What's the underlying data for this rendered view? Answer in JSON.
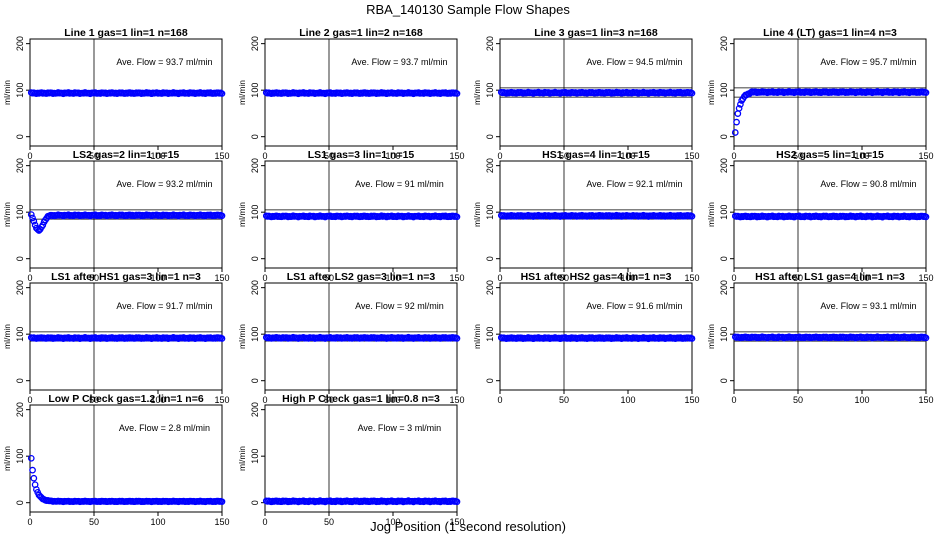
{
  "figure": {
    "title": "RBA_140130  Sample Flow Shapes",
    "xlabel": "Jog Position (1 second resolution)"
  },
  "chart_data": [
    {
      "type": "scatter",
      "title": "Line 1 gas=1 lin=1 n=168",
      "ylabel": "ml/min",
      "annotation": "Ave. Flow = 93.7  ml/min",
      "ave_flow": 93.7,
      "xlim": [
        0,
        150
      ],
      "ylim": [
        -20,
        210
      ],
      "xticks": [
        0,
        50,
        100,
        150
      ],
      "yticks": [
        0,
        100,
        200
      ],
      "hlines": [],
      "vline": 50,
      "shape": "flat",
      "level": 93.7
    },
    {
      "type": "scatter",
      "title": "Line 2 gas=1 lin=2 n=168",
      "ylabel": "ml/min",
      "annotation": "Ave. Flow = 93.7  ml/min",
      "ave_flow": 93.7,
      "xlim": [
        0,
        150
      ],
      "ylim": [
        -20,
        210
      ],
      "xticks": [
        0,
        50,
        100,
        150
      ],
      "yticks": [
        0,
        100,
        200
      ],
      "hlines": [],
      "vline": 50,
      "shape": "flat",
      "level": 93.7
    },
    {
      "type": "scatter",
      "title": "Line 3 gas=1 lin=3 n=168",
      "ylabel": "ml/min",
      "annotation": "Ave. Flow = 94.5  ml/min",
      "ave_flow": 94.5,
      "xlim": [
        0,
        150
      ],
      "ylim": [
        -20,
        210
      ],
      "xticks": [
        0,
        50,
        100,
        150
      ],
      "yticks": [
        0,
        100,
        200
      ],
      "hlines": [
        85,
        105
      ],
      "vline": 50,
      "shape": "flat",
      "level": 94.5
    },
    {
      "type": "scatter",
      "title": "Line 4 (LT) gas=1 lin=4 n=3",
      "ylabel": "ml/min",
      "annotation": "Ave. Flow = 95.7  ml/min",
      "ave_flow": 95.7,
      "xlim": [
        0,
        150
      ],
      "ylim": [
        -20,
        210
      ],
      "xticks": [
        0,
        50,
        100,
        150
      ],
      "yticks": [
        0,
        100,
        200
      ],
      "hlines": [
        85,
        105
      ],
      "vline": 50,
      "shape": "rise",
      "level": 95.7
    },
    {
      "type": "scatter",
      "title": "LS2 gas=2 lin=1 n=15",
      "ylabel": "ml/min",
      "annotation": "Ave. Flow = 93.2  ml/min",
      "ave_flow": 93.2,
      "xlim": [
        0,
        150
      ],
      "ylim": [
        -20,
        210
      ],
      "xticks": [
        0,
        50,
        100,
        150
      ],
      "yticks": [
        0,
        100,
        200
      ],
      "hlines": [
        85,
        105
      ],
      "vline": 50,
      "shape": "dip",
      "level": 93.2
    },
    {
      "type": "scatter",
      "title": "LS1 gas=3 lin=1 n=15",
      "ylabel": "ml/min",
      "annotation": "Ave. Flow = 91  ml/min",
      "ave_flow": 91,
      "xlim": [
        0,
        150
      ],
      "ylim": [
        -20,
        210
      ],
      "xticks": [
        0,
        50,
        100,
        150
      ],
      "yticks": [
        0,
        100,
        200
      ],
      "hlines": [
        85,
        105
      ],
      "vline": 50,
      "shape": "flat",
      "level": 91
    },
    {
      "type": "scatter",
      "title": "HS1 gas=4 lin=1 n=15",
      "ylabel": "ml/min",
      "annotation": "Ave. Flow = 92.1  ml/min",
      "ave_flow": 92.1,
      "xlim": [
        0,
        150
      ],
      "ylim": [
        -20,
        210
      ],
      "xticks": [
        0,
        50,
        100,
        150
      ],
      "yticks": [
        0,
        100,
        200
      ],
      "hlines": [
        85,
        105
      ],
      "vline": 50,
      "shape": "flat",
      "level": 92.1
    },
    {
      "type": "scatter",
      "title": "HS2 gas=5 lin=1 n=15",
      "ylabel": "ml/min",
      "annotation": "Ave. Flow = 90.8  ml/min",
      "ave_flow": 90.8,
      "xlim": [
        0,
        150
      ],
      "ylim": [
        -20,
        210
      ],
      "xticks": [
        0,
        50,
        100,
        150
      ],
      "yticks": [
        0,
        100,
        200
      ],
      "hlines": [
        85,
        105
      ],
      "vline": 50,
      "shape": "flat",
      "level": 90.8
    },
    {
      "type": "scatter",
      "title": "LS1 after HS1 gas=3 lin=1 n=3",
      "ylabel": "ml/min",
      "annotation": "Ave. Flow = 91.7  ml/min",
      "ave_flow": 91.7,
      "xlim": [
        0,
        150
      ],
      "ylim": [
        -20,
        210
      ],
      "xticks": [
        0,
        50,
        100,
        150
      ],
      "yticks": [
        0,
        100,
        200
      ],
      "hlines": [
        85,
        105
      ],
      "vline": 50,
      "shape": "flat",
      "level": 91.7
    },
    {
      "type": "scatter",
      "title": "LS1 after LS2 gas=3 lin=1 n=3",
      "ylabel": "ml/min",
      "annotation": "Ave. Flow = 92  ml/min",
      "ave_flow": 92,
      "xlim": [
        0,
        150
      ],
      "ylim": [
        -20,
        210
      ],
      "xticks": [
        0,
        50,
        100,
        150
      ],
      "yticks": [
        0,
        100,
        200
      ],
      "hlines": [
        85,
        105
      ],
      "vline": 50,
      "shape": "flat",
      "level": 92
    },
    {
      "type": "scatter",
      "title": "HS1 after HS2 gas=4 lin=1 n=3",
      "ylabel": "ml/min",
      "annotation": "Ave. Flow = 91.6  ml/min",
      "ave_flow": 91.6,
      "xlim": [
        0,
        150
      ],
      "ylim": [
        -20,
        210
      ],
      "xticks": [
        0,
        50,
        100,
        150
      ],
      "yticks": [
        0,
        100,
        200
      ],
      "hlines": [
        85,
        105
      ],
      "vline": 50,
      "shape": "flat",
      "level": 91.6
    },
    {
      "type": "scatter",
      "title": "HS1 after LS1 gas=4 lin=1 n=3",
      "ylabel": "ml/min",
      "annotation": "Ave. Flow = 93.1  ml/min",
      "ave_flow": 93.1,
      "xlim": [
        0,
        150
      ],
      "ylim": [
        -20,
        210
      ],
      "xticks": [
        0,
        50,
        100,
        150
      ],
      "yticks": [
        0,
        100,
        200
      ],
      "hlines": [
        85,
        105
      ],
      "vline": 50,
      "shape": "flat",
      "level": 93.1
    },
    {
      "type": "scatter",
      "title": "Low P Check gas=1.2 lin=1 n=6",
      "ylabel": "ml/min",
      "annotation": "Ave. Flow = 2.8  ml/min",
      "ave_flow": 2.8,
      "xlim": [
        0,
        150
      ],
      "ylim": [
        -20,
        210
      ],
      "xticks": [
        0,
        50,
        100,
        150
      ],
      "yticks": [
        0,
        100,
        200
      ],
      "hlines": [],
      "vline": 50,
      "shape": "decay",
      "level": 2.8
    },
    {
      "type": "scatter",
      "title": "High P Check gas=1 lin=0.8 n=3",
      "ylabel": "ml/min",
      "annotation": "Ave. Flow = 3  ml/min",
      "ave_flow": 3,
      "xlim": [
        0,
        150
      ],
      "ylim": [
        -20,
        210
      ],
      "xticks": [
        0,
        50,
        100,
        150
      ],
      "yticks": [
        0,
        100,
        200
      ],
      "hlines": [],
      "vline": 50,
      "shape": "flat",
      "level": 3
    }
  ],
  "style": {
    "point_color": "#0000ff",
    "line_color": "#000000",
    "background": "#ffffff"
  }
}
